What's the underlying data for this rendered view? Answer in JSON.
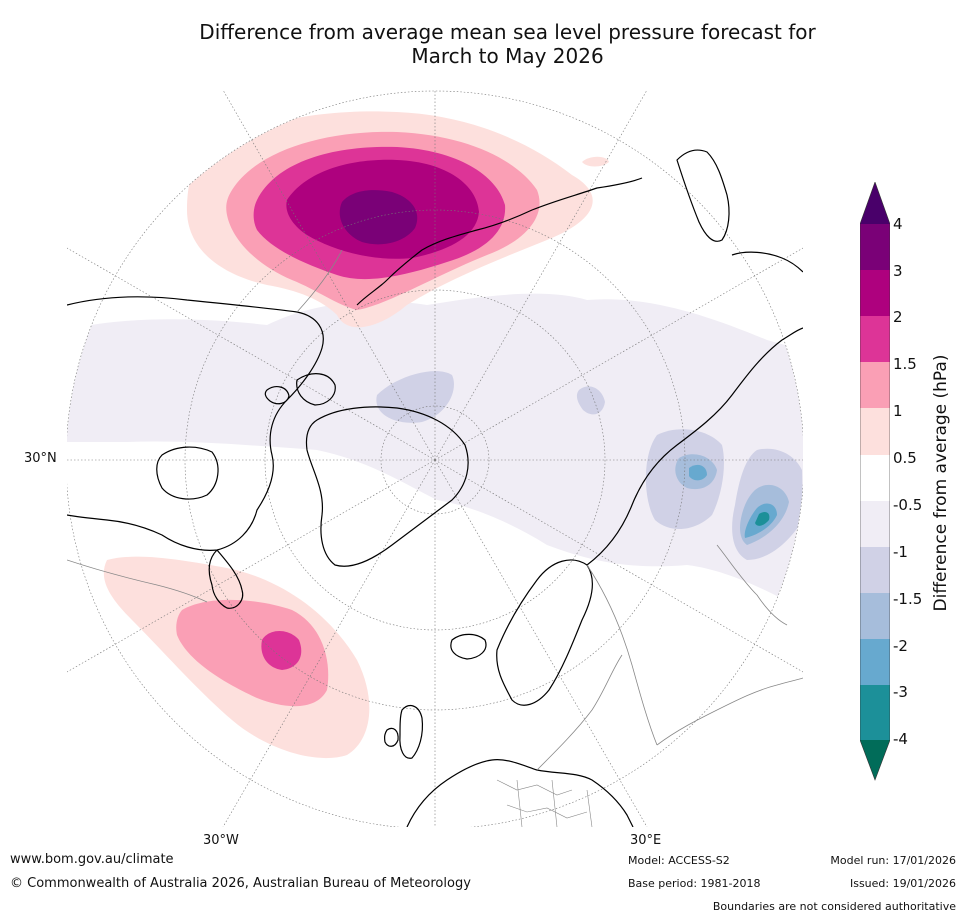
{
  "title": {
    "line1": "Difference from average mean sea level pressure forecast for",
    "line2": "March to May 2026"
  },
  "map": {
    "projection": "north polar stereographic",
    "lat_labels": [
      "30°N"
    ],
    "lon_labels": [
      "30°W",
      "30°E"
    ]
  },
  "colorbar": {
    "title": "Difference from average (hPa)",
    "ticks": [
      "4",
      "3",
      "2",
      "1.5",
      "1",
      "0.5",
      "-0.5",
      "-1",
      "-1.5",
      "-2",
      "-3",
      "-4"
    ],
    "colors": {
      "3_to_4": "#7a0177",
      "2_to_3": "#ae017e",
      "1.5_to_2": "#dd3497",
      "1_to_1.5": "#fa9fb5",
      "0.5_to_1": "#fde0dd",
      "-0.5_to_0.5": "#ffffff",
      "-1_to_-0.5": "#f0edf5",
      "-1.5_to_-1": "#d0d1e6",
      "-2_to_-1.5": "#a6bddb",
      "-3_to_-2": "#67a9cf",
      "-4_to_-3": "#1c9099",
      "below_-4": "#016c59",
      "above_4": "#49006a"
    }
  },
  "footer": {
    "website": "www.bom.gov.au/climate",
    "copyright": "© Commonwealth of Australia 2026, Australian Bureau of Meteorology",
    "model": "Model: ACCESS-S2",
    "base_period": "Base period: 1981-2018",
    "model_run": "Model run: 17/01/2026",
    "issued": "Issued: 19/01/2026",
    "disclaimer": "Boundaries are not considered authoritative"
  }
}
